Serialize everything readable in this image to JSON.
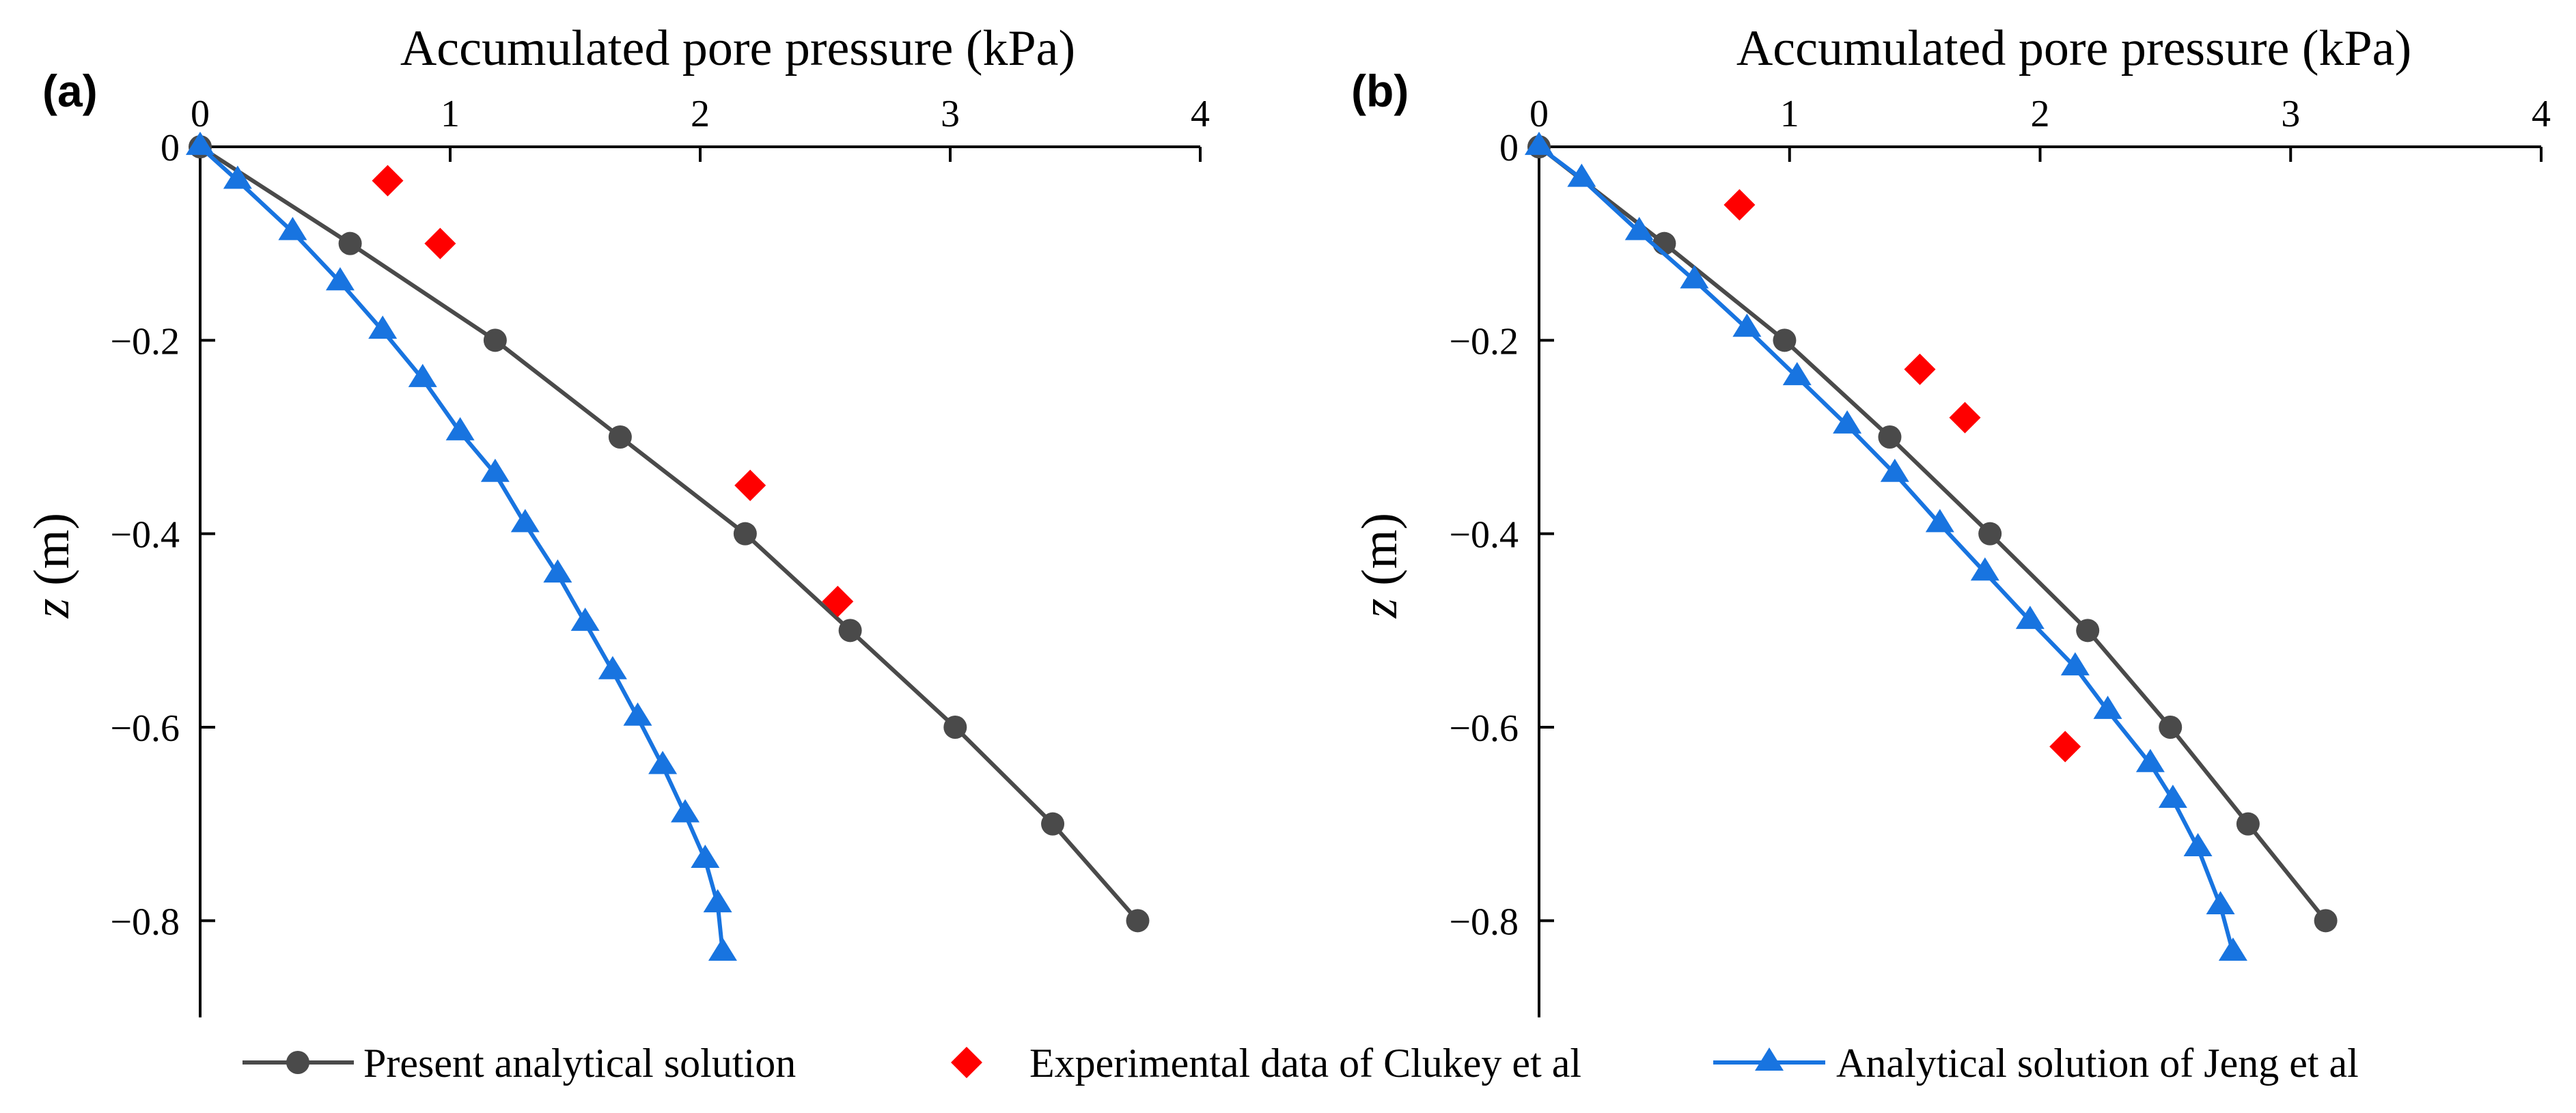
{
  "colors": {
    "present": "#4a4a4a",
    "experimental": "#ff0000",
    "jeng": "#1874e0",
    "axis": "#000000"
  },
  "legend": {
    "present": "Present analytical solution",
    "experimental": "Experimental data of Clukey et al",
    "jeng": "Analytical solution of Jeng et al"
  },
  "chart_data": [
    {
      "type": "line",
      "panel_label": "(a)",
      "panel_label_bold": "a",
      "xlabel": "Accumulated pore pressure (kPa)",
      "ylabel": "z (m)",
      "xlim": [
        0,
        4
      ],
      "ylim": [
        -0.9,
        0
      ],
      "xticks": [
        0,
        1,
        2,
        3,
        4
      ],
      "yticks": [
        0,
        -0.2,
        -0.4,
        -0.6,
        -0.8
      ],
      "xtick_labels": [
        "0",
        "1",
        "2",
        "3",
        "4"
      ],
      "ytick_labels": [
        "0",
        "−0.2",
        "−0.4",
        "−0.6",
        "−0.8"
      ],
      "series": [
        {
          "name": "Present analytical solution",
          "marker": "circle",
          "line": true,
          "x": [
            0,
            0.6,
            1.18,
            1.68,
            2.18,
            2.6,
            3.02,
            3.41,
            3.75
          ],
          "y": [
            0,
            -0.1,
            -0.2,
            -0.3,
            -0.4,
            -0.5,
            -0.6,
            -0.7,
            -0.8
          ]
        },
        {
          "name": "Experimental data of Clukey et al",
          "marker": "diamond",
          "line": false,
          "x": [
            0.75,
            0.96,
            2.2,
            2.55
          ],
          "y": [
            -0.035,
            -0.1,
            -0.35,
            -0.47
          ]
        },
        {
          "name": "Analytical solution of Jeng et al",
          "marker": "triangle",
          "line": true,
          "x": [
            0,
            0.15,
            0.37,
            0.56,
            0.73,
            0.89,
            1.04,
            1.18,
            1.3,
            1.43,
            1.54,
            1.65,
            1.75,
            1.85,
            1.94,
            2.02,
            2.07,
            2.09
          ],
          "y": [
            0,
            -0.035,
            -0.088,
            -0.14,
            -0.19,
            -0.24,
            -0.295,
            -0.338,
            -0.39,
            -0.442,
            -0.492,
            -0.542,
            -0.59,
            -0.64,
            -0.69,
            -0.737,
            -0.783,
            -0.833
          ]
        }
      ]
    },
    {
      "type": "line",
      "panel_label": "(b)",
      "panel_label_bold": "b",
      "xlabel": "Accumulated pore pressure (kPa)",
      "ylabel": "z (m)",
      "xlim": [
        0,
        4
      ],
      "ylim": [
        -0.9,
        0
      ],
      "xticks": [
        0,
        1,
        2,
        3,
        4
      ],
      "yticks": [
        0,
        -0.2,
        -0.4,
        -0.6,
        -0.8
      ],
      "xtick_labels": [
        "0",
        "1",
        "2",
        "3",
        "4"
      ],
      "ytick_labels": [
        "0",
        "−0.2",
        "−0.4",
        "−0.6",
        "−0.8"
      ],
      "series": [
        {
          "name": "Present analytical solution",
          "marker": "circle",
          "line": true,
          "x": [
            0,
            0.5,
            0.98,
            1.4,
            1.8,
            2.19,
            2.52,
            2.83,
            3.14
          ],
          "y": [
            0,
            -0.1,
            -0.2,
            -0.3,
            -0.4,
            -0.5,
            -0.6,
            -0.7,
            -0.8
          ]
        },
        {
          "name": "Experimental data of Clukey et al",
          "marker": "diamond",
          "line": false,
          "x": [
            0.8,
            1.52,
            1.7,
            2.1
          ],
          "y": [
            -0.06,
            -0.23,
            -0.28,
            -0.62
          ]
        },
        {
          "name": "Analytical solution of Jeng et al",
          "marker": "triangle",
          "line": true,
          "x": [
            0,
            0.17,
            0.4,
            0.62,
            0.83,
            1.03,
            1.23,
            1.42,
            1.6,
            1.78,
            1.96,
            2.14,
            2.27,
            2.44,
            2.53,
            2.63,
            2.72,
            2.77
          ],
          "y": [
            0,
            -0.033,
            -0.088,
            -0.138,
            -0.188,
            -0.238,
            -0.288,
            -0.338,
            -0.39,
            -0.44,
            -0.49,
            -0.538,
            -0.583,
            -0.638,
            -0.675,
            -0.725,
            -0.785,
            -0.833
          ]
        }
      ]
    }
  ]
}
